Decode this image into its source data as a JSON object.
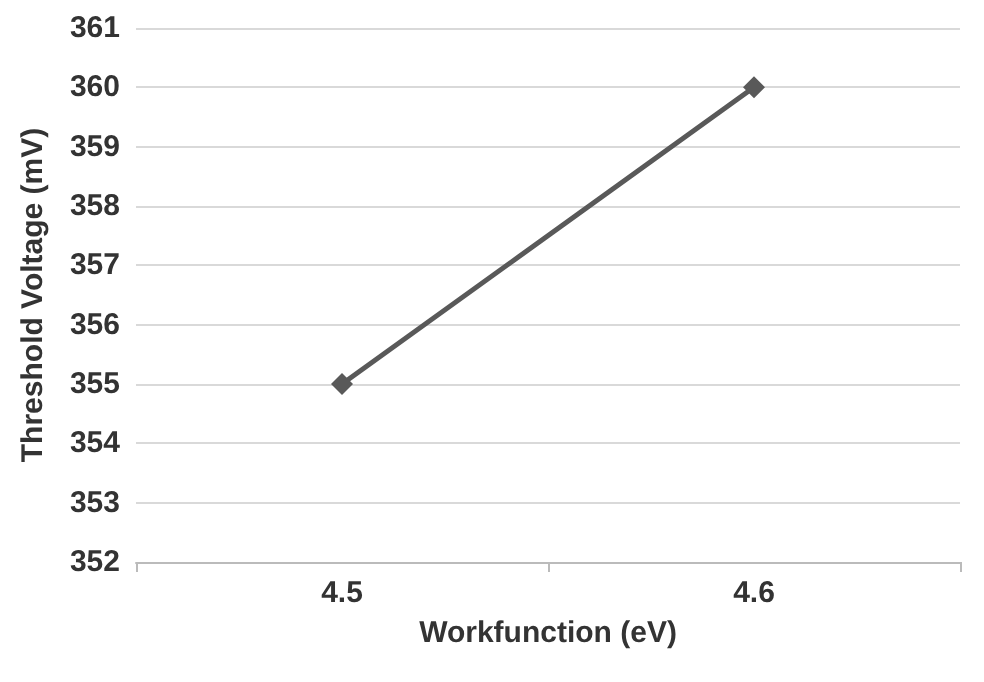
{
  "chart_data": {
    "type": "line",
    "xlabel": "Workfunction (eV)",
    "ylabel": "Threshold Voltage (mV)",
    "categories": [
      "4.5",
      "4.6"
    ],
    "series": [
      {
        "color": "#595959",
        "values": [
          355,
          360
        ]
      }
    ],
    "ylim": [
      352,
      361
    ],
    "yticks": [
      352,
      353,
      354,
      355,
      356,
      357,
      358,
      359,
      360,
      361
    ],
    "grid": "y",
    "marker": "diamond",
    "line_style": "solid"
  }
}
